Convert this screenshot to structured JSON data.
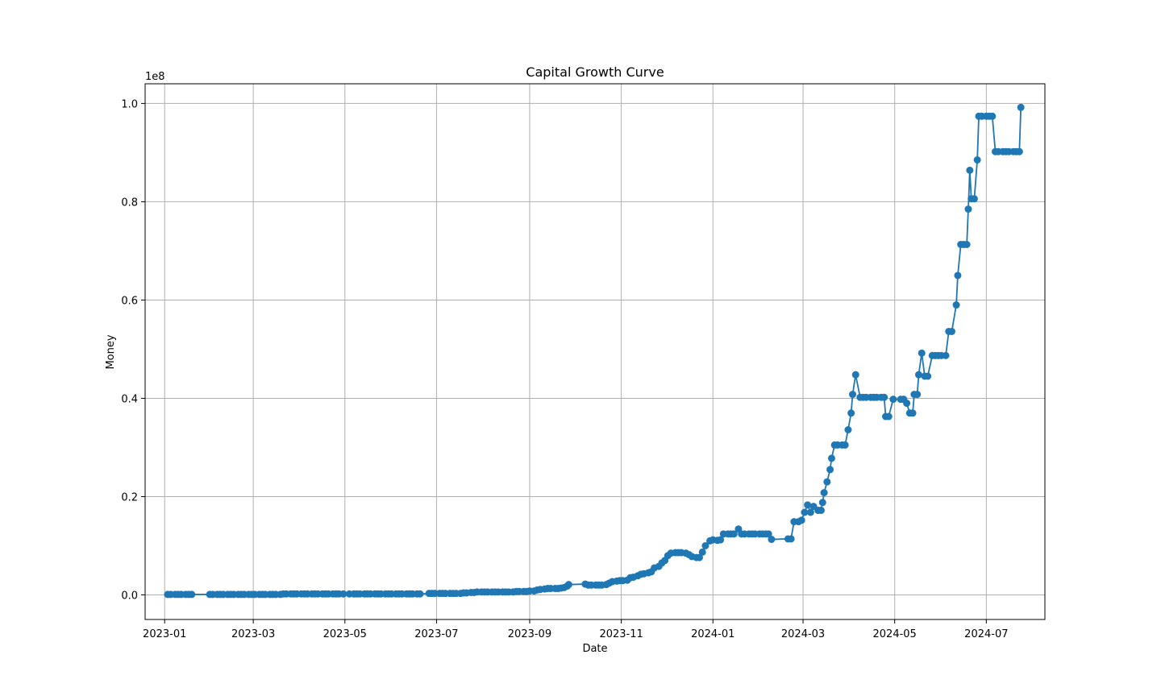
{
  "chart_data": {
    "type": "line",
    "title": "Capital Growth Curve",
    "xlabel": "Date",
    "ylabel": "Money",
    "y_offset_label": "1e8",
    "grid": true,
    "legend": "none",
    "colors": {
      "series": "#1f77b4",
      "grid": "#b0b0b0",
      "axes": "#000000"
    },
    "xlim": [
      "2022-12-19",
      "2024-08-09"
    ],
    "ylim": [
      -0.05,
      1.04
    ],
    "x_ticks": [
      {
        "date": "2023-01-01",
        "label": "2023-01"
      },
      {
        "date": "2023-03-01",
        "label": "2023-03"
      },
      {
        "date": "2023-05-01",
        "label": "2023-05"
      },
      {
        "date": "2023-07-01",
        "label": "2023-07"
      },
      {
        "date": "2023-09-01",
        "label": "2023-09"
      },
      {
        "date": "2023-11-01",
        "label": "2023-11"
      },
      {
        "date": "2024-01-01",
        "label": "2024-01"
      },
      {
        "date": "2024-03-01",
        "label": "2024-03"
      },
      {
        "date": "2024-05-01",
        "label": "2024-05"
      },
      {
        "date": "2024-07-01",
        "label": "2024-07"
      }
    ],
    "y_ticks": [
      {
        "value": 0.0,
        "label": "0.0"
      },
      {
        "value": 0.2,
        "label": "0.2"
      },
      {
        "value": 0.4,
        "label": "0.4"
      },
      {
        "value": 0.6,
        "label": "0.6"
      },
      {
        "value": 0.8,
        "label": "0.8"
      },
      {
        "value": 1.0,
        "label": "1.0"
      }
    ],
    "series": [
      {
        "marker": "circle",
        "points": [
          [
            "2023-01-03",
            0.001
          ],
          [
            "2023-01-05",
            0.001
          ],
          [
            "2023-01-08",
            0.001
          ],
          [
            "2023-01-10",
            0.001
          ],
          [
            "2023-01-12",
            0.001
          ],
          [
            "2023-01-15",
            0.001
          ],
          [
            "2023-01-17",
            0.001
          ],
          [
            "2023-01-19",
            0.001
          ],
          [
            "2023-01-31",
            0.001
          ],
          [
            "2023-02-02",
            0.001
          ],
          [
            "2023-02-05",
            0.001
          ],
          [
            "2023-02-07",
            0.001
          ],
          [
            "2023-02-09",
            0.001
          ],
          [
            "2023-02-12",
            0.001
          ],
          [
            "2023-02-14",
            0.001
          ],
          [
            "2023-02-16",
            0.001
          ],
          [
            "2023-02-19",
            0.001
          ],
          [
            "2023-02-21",
            0.001
          ],
          [
            "2023-02-23",
            0.001
          ],
          [
            "2023-02-26",
            0.001
          ],
          [
            "2023-02-28",
            0.001
          ],
          [
            "2023-03-02",
            0.001
          ],
          [
            "2023-03-05",
            0.001
          ],
          [
            "2023-03-07",
            0.001
          ],
          [
            "2023-03-09",
            0.001
          ],
          [
            "2023-03-12",
            0.001
          ],
          [
            "2023-03-14",
            0.001
          ],
          [
            "2023-03-16",
            0.001
          ],
          [
            "2023-03-19",
            0.001
          ],
          [
            "2023-03-21",
            0.002
          ],
          [
            "2023-03-23",
            0.002
          ],
          [
            "2023-03-26",
            0.002
          ],
          [
            "2023-03-28",
            0.002
          ],
          [
            "2023-03-30",
            0.002
          ],
          [
            "2023-04-02",
            0.002
          ],
          [
            "2023-04-04",
            0.002
          ],
          [
            "2023-04-06",
            0.002
          ],
          [
            "2023-04-09",
            0.002
          ],
          [
            "2023-04-11",
            0.002
          ],
          [
            "2023-04-13",
            0.002
          ],
          [
            "2023-04-16",
            0.002
          ],
          [
            "2023-04-18",
            0.002
          ],
          [
            "2023-04-20",
            0.002
          ],
          [
            "2023-04-23",
            0.002
          ],
          [
            "2023-04-25",
            0.002
          ],
          [
            "2023-04-27",
            0.002
          ],
          [
            "2023-04-30",
            0.002
          ],
          [
            "2023-05-04",
            0.002
          ],
          [
            "2023-05-07",
            0.002
          ],
          [
            "2023-05-09",
            0.002
          ],
          [
            "2023-05-11",
            0.002
          ],
          [
            "2023-05-14",
            0.002
          ],
          [
            "2023-05-16",
            0.002
          ],
          [
            "2023-05-18",
            0.002
          ],
          [
            "2023-05-21",
            0.002
          ],
          [
            "2023-05-23",
            0.002
          ],
          [
            "2023-05-25",
            0.002
          ],
          [
            "2023-05-28",
            0.002
          ],
          [
            "2023-05-30",
            0.002
          ],
          [
            "2023-06-01",
            0.002
          ],
          [
            "2023-06-04",
            0.002
          ],
          [
            "2023-06-06",
            0.002
          ],
          [
            "2023-06-08",
            0.002
          ],
          [
            "2023-06-11",
            0.002
          ],
          [
            "2023-06-13",
            0.002
          ],
          [
            "2023-06-15",
            0.002
          ],
          [
            "2023-06-18",
            0.002
          ],
          [
            "2023-06-20",
            0.002
          ],
          [
            "2023-06-26",
            0.003
          ],
          [
            "2023-06-28",
            0.003
          ],
          [
            "2023-06-30",
            0.003
          ],
          [
            "2023-07-03",
            0.003
          ],
          [
            "2023-07-05",
            0.003
          ],
          [
            "2023-07-07",
            0.003
          ],
          [
            "2023-07-10",
            0.003
          ],
          [
            "2023-07-12",
            0.003
          ],
          [
            "2023-07-14",
            0.003
          ],
          [
            "2023-07-17",
            0.003
          ],
          [
            "2023-07-19",
            0.004
          ],
          [
            "2023-07-21",
            0.004
          ],
          [
            "2023-07-24",
            0.005
          ],
          [
            "2023-07-26",
            0.005
          ],
          [
            "2023-07-28",
            0.006
          ],
          [
            "2023-07-31",
            0.006
          ],
          [
            "2023-08-02",
            0.006
          ],
          [
            "2023-08-04",
            0.006
          ],
          [
            "2023-08-07",
            0.006
          ],
          [
            "2023-08-09",
            0.006
          ],
          [
            "2023-08-11",
            0.006
          ],
          [
            "2023-08-14",
            0.006
          ],
          [
            "2023-08-16",
            0.006
          ],
          [
            "2023-08-18",
            0.006
          ],
          [
            "2023-08-21",
            0.006
          ],
          [
            "2023-08-23",
            0.007
          ],
          [
            "2023-08-25",
            0.007
          ],
          [
            "2023-08-28",
            0.007
          ],
          [
            "2023-08-30",
            0.007
          ],
          [
            "2023-09-01",
            0.008
          ],
          [
            "2023-09-04",
            0.008
          ],
          [
            "2023-09-06",
            0.01
          ],
          [
            "2023-09-08",
            0.011
          ],
          [
            "2023-09-11",
            0.012
          ],
          [
            "2023-09-13",
            0.013
          ],
          [
            "2023-09-15",
            0.013
          ],
          [
            "2023-09-18",
            0.013
          ],
          [
            "2023-09-20",
            0.013
          ],
          [
            "2023-09-22",
            0.014
          ],
          [
            "2023-09-24",
            0.015
          ],
          [
            "2023-09-26",
            0.018
          ],
          [
            "2023-09-27",
            0.021
          ],
          [
            "2023-10-08",
            0.022
          ],
          [
            "2023-10-10",
            0.02
          ],
          [
            "2023-10-12",
            0.02
          ],
          [
            "2023-10-15",
            0.02
          ],
          [
            "2023-10-17",
            0.02
          ],
          [
            "2023-10-19",
            0.02
          ],
          [
            "2023-10-22",
            0.021
          ],
          [
            "2023-10-24",
            0.024
          ],
          [
            "2023-10-26",
            0.027
          ],
          [
            "2023-10-29",
            0.028
          ],
          [
            "2023-10-31",
            0.029
          ],
          [
            "2023-11-02",
            0.029
          ],
          [
            "2023-11-05",
            0.03
          ],
          [
            "2023-11-07",
            0.035
          ],
          [
            "2023-11-09",
            0.036
          ],
          [
            "2023-11-12",
            0.039
          ],
          [
            "2023-11-14",
            0.042
          ],
          [
            "2023-11-16",
            0.043
          ],
          [
            "2023-11-19",
            0.045
          ],
          [
            "2023-11-21",
            0.047
          ],
          [
            "2023-11-23",
            0.055
          ],
          [
            "2023-11-26",
            0.058
          ],
          [
            "2023-11-28",
            0.065
          ],
          [
            "2023-11-30",
            0.07
          ],
          [
            "2023-12-02",
            0.08
          ],
          [
            "2023-12-04",
            0.085
          ],
          [
            "2023-12-07",
            0.086
          ],
          [
            "2023-12-09",
            0.086
          ],
          [
            "2023-12-11",
            0.086
          ],
          [
            "2023-12-14",
            0.085
          ],
          [
            "2023-12-16",
            0.082
          ],
          [
            "2023-12-18",
            0.078
          ],
          [
            "2023-12-21",
            0.076
          ],
          [
            "2023-12-23",
            0.076
          ],
          [
            "2023-12-25",
            0.087
          ],
          [
            "2023-12-27",
            0.1
          ],
          [
            "2023-12-30",
            0.11
          ],
          [
            "2024-01-01",
            0.112
          ],
          [
            "2024-01-04",
            0.111
          ],
          [
            "2024-01-06",
            0.112
          ],
          [
            "2024-01-08",
            0.124
          ],
          [
            "2024-01-11",
            0.124
          ],
          [
            "2024-01-13",
            0.124
          ],
          [
            "2024-01-15",
            0.124
          ],
          [
            "2024-01-18",
            0.134
          ],
          [
            "2024-01-20",
            0.124
          ],
          [
            "2024-01-22",
            0.124
          ],
          [
            "2024-01-25",
            0.124
          ],
          [
            "2024-01-27",
            0.124
          ],
          [
            "2024-01-29",
            0.124
          ],
          [
            "2024-02-01",
            0.124
          ],
          [
            "2024-02-03",
            0.124
          ],
          [
            "2024-02-05",
            0.124
          ],
          [
            "2024-02-07",
            0.124
          ],
          [
            "2024-02-09",
            0.113
          ],
          [
            "2024-02-20",
            0.114
          ],
          [
            "2024-02-22",
            0.114
          ],
          [
            "2024-02-24",
            0.149
          ],
          [
            "2024-02-27",
            0.149
          ],
          [
            "2024-02-29",
            0.152
          ],
          [
            "2024-03-02",
            0.168
          ],
          [
            "2024-03-04",
            0.183
          ],
          [
            "2024-03-06",
            0.168
          ],
          [
            "2024-03-08",
            0.18
          ],
          [
            "2024-03-11",
            0.172
          ],
          [
            "2024-03-13",
            0.172
          ],
          [
            "2024-03-14",
            0.188
          ],
          [
            "2024-03-15",
            0.208
          ],
          [
            "2024-03-17",
            0.23
          ],
          [
            "2024-03-19",
            0.255
          ],
          [
            "2024-03-20",
            0.278
          ],
          [
            "2024-03-22",
            0.305
          ],
          [
            "2024-03-24",
            0.305
          ],
          [
            "2024-03-27",
            0.305
          ],
          [
            "2024-03-29",
            0.305
          ],
          [
            "2024-03-31",
            0.336
          ],
          [
            "2024-04-02",
            0.37
          ],
          [
            "2024-04-03",
            0.408
          ],
          [
            "2024-04-05",
            0.448
          ],
          [
            "2024-04-08",
            0.402
          ],
          [
            "2024-04-10",
            0.402
          ],
          [
            "2024-04-12",
            0.402
          ],
          [
            "2024-04-15",
            0.402
          ],
          [
            "2024-04-17",
            0.402
          ],
          [
            "2024-04-19",
            0.402
          ],
          [
            "2024-04-22",
            0.402
          ],
          [
            "2024-04-24",
            0.402
          ],
          [
            "2024-04-25",
            0.363
          ],
          [
            "2024-04-27",
            0.363
          ],
          [
            "2024-04-30",
            0.398
          ],
          [
            "2024-05-05",
            0.398
          ],
          [
            "2024-05-07",
            0.398
          ],
          [
            "2024-05-09",
            0.39
          ],
          [
            "2024-05-11",
            0.37
          ],
          [
            "2024-05-13",
            0.37
          ],
          [
            "2024-05-14",
            0.408
          ],
          [
            "2024-05-16",
            0.408
          ],
          [
            "2024-05-17",
            0.448
          ],
          [
            "2024-05-19",
            0.492
          ],
          [
            "2024-05-21",
            0.445
          ],
          [
            "2024-05-23",
            0.445
          ],
          [
            "2024-05-26",
            0.487
          ],
          [
            "2024-05-28",
            0.487
          ],
          [
            "2024-05-30",
            0.487
          ],
          [
            "2024-06-01",
            0.487
          ],
          [
            "2024-06-04",
            0.487
          ],
          [
            "2024-06-06",
            0.536
          ],
          [
            "2024-06-08",
            0.536
          ],
          [
            "2024-06-11",
            0.59
          ],
          [
            "2024-06-12",
            0.65
          ],
          [
            "2024-06-14",
            0.713
          ],
          [
            "2024-06-16",
            0.713
          ],
          [
            "2024-06-18",
            0.713
          ],
          [
            "2024-06-19",
            0.785
          ],
          [
            "2024-06-20",
            0.864
          ],
          [
            "2024-06-21",
            0.806
          ],
          [
            "2024-06-23",
            0.806
          ],
          [
            "2024-06-25",
            0.885
          ],
          [
            "2024-06-26",
            0.974
          ],
          [
            "2024-06-28",
            0.974
          ],
          [
            "2024-07-01",
            0.974
          ],
          [
            "2024-07-03",
            0.974
          ],
          [
            "2024-07-05",
            0.974
          ],
          [
            "2024-07-07",
            0.902
          ],
          [
            "2024-07-09",
            0.902
          ],
          [
            "2024-07-12",
            0.902
          ],
          [
            "2024-07-14",
            0.902
          ],
          [
            "2024-07-16",
            0.902
          ],
          [
            "2024-07-19",
            0.902
          ],
          [
            "2024-07-21",
            0.902
          ],
          [
            "2024-07-23",
            0.902
          ],
          [
            "2024-07-24",
            0.992
          ]
        ]
      }
    ]
  }
}
